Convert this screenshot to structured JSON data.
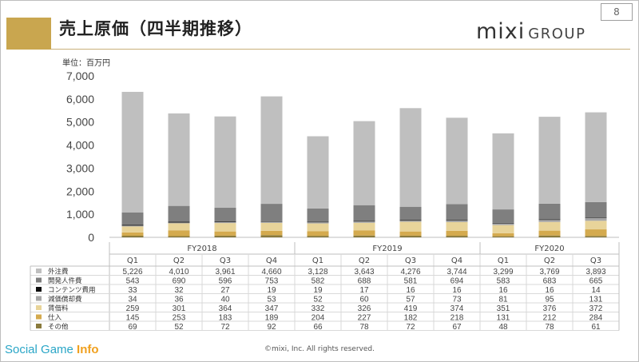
{
  "header": {
    "title": "売上原価（四半期推移）",
    "page_number": "8",
    "logo_mixi": "mixi",
    "logo_group": "GROUP",
    "unit": "単位：百万円"
  },
  "footer": {
    "copyright": "©mixi, Inc. All rights reserved.",
    "watermark_a": "Social Game ",
    "watermark_b": "Info"
  },
  "chart_data": {
    "type": "bar",
    "stacked": true,
    "unit": "単位：百万円",
    "ylim": [
      0,
      7000
    ],
    "yticks": [
      "0",
      "1,000",
      "2,000",
      "3,000",
      "4,000",
      "5,000",
      "6,000",
      "7,000"
    ],
    "fiscal_years": [
      {
        "label": "FY2018",
        "quarters": 4
      },
      {
        "label": "FY2019",
        "quarters": 4
      },
      {
        "label": "FY2020",
        "quarters": 3
      }
    ],
    "categories": [
      "Q1",
      "Q2",
      "Q3",
      "Q4",
      "Q1",
      "Q2",
      "Q3",
      "Q4",
      "Q1",
      "Q2",
      "Q3"
    ],
    "series": [
      {
        "name": "外注費",
        "color": "#bfbfbf",
        "values": [
          5226,
          4010,
          3961,
          4660,
          3128,
          3643,
          4276,
          3744,
          3299,
          3769,
          3893
        ],
        "labels": [
          "5,226",
          "4,010",
          "3,961",
          "4,660",
          "3,128",
          "3,643",
          "4,276",
          "3,744",
          "3,299",
          "3,769",
          "3,893"
        ]
      },
      {
        "name": "開発人件費",
        "color": "#7f7f7f",
        "values": [
          543,
          690,
          596,
          753,
          582,
          688,
          581,
          694,
          583,
          683,
          665
        ],
        "labels": [
          "543",
          "690",
          "596",
          "753",
          "582",
          "688",
          "581",
          "694",
          "583",
          "683",
          "665"
        ]
      },
      {
        "name": "コンテンツ費用",
        "color": "#0d0d0d",
        "values": [
          33,
          32,
          27,
          19,
          19,
          17,
          16,
          16,
          16,
          16,
          14
        ],
        "labels": [
          "33",
          "32",
          "27",
          "19",
          "19",
          "17",
          "16",
          "16",
          "16",
          "16",
          "14"
        ]
      },
      {
        "name": "減価償却費",
        "color": "#a6a6a6",
        "values": [
          34,
          36,
          40,
          53,
          52,
          60,
          57,
          73,
          81,
          95,
          131
        ],
        "labels": [
          "34",
          "36",
          "40",
          "53",
          "52",
          "60",
          "57",
          "73",
          "81",
          "95",
          "131"
        ]
      },
      {
        "name": "賃借料",
        "color": "#e8d49a",
        "values": [
          259,
          301,
          364,
          347,
          332,
          326,
          419,
          374,
          351,
          376,
          372
        ],
        "labels": [
          "259",
          "301",
          "364",
          "347",
          "332",
          "326",
          "419",
          "374",
          "351",
          "376",
          "372"
        ]
      },
      {
        "name": "仕入",
        "color": "#d4aa4e",
        "values": [
          145,
          253,
          183,
          189,
          204,
          227,
          182,
          218,
          131,
          212,
          284
        ],
        "labels": [
          "145",
          "253",
          "183",
          "189",
          "204",
          "227",
          "182",
          "218",
          "131",
          "212",
          "284"
        ]
      },
      {
        "name": "その他",
        "color": "#8a7a3c",
        "values": [
          69,
          52,
          72,
          92,
          66,
          78,
          72,
          67,
          48,
          78,
          61
        ],
        "labels": [
          "69",
          "52",
          "72",
          "92",
          "66",
          "78",
          "72",
          "67",
          "48",
          "78",
          "61"
        ]
      }
    ]
  }
}
